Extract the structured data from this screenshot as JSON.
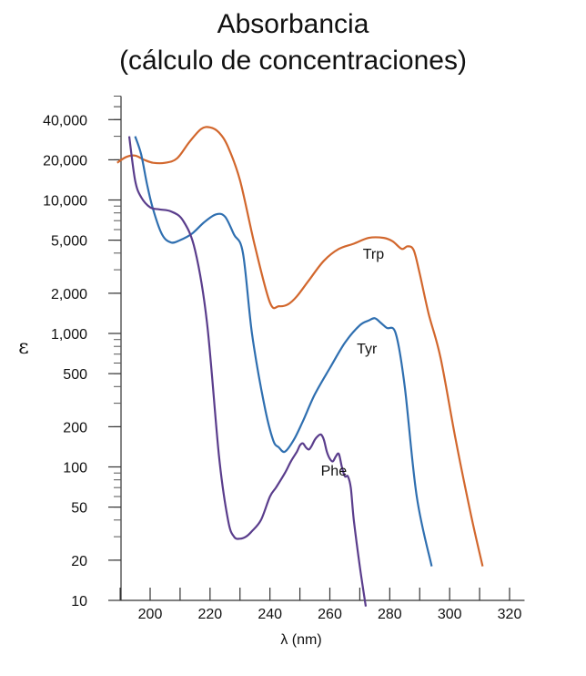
{
  "chart_data": {
    "type": "line",
    "title": "Absorbancia",
    "subtitle": "(cálculo de concentraciones)",
    "xlabel": "λ (nm)",
    "ylabel": "ε",
    "xlim": [
      185,
      325
    ],
    "ylim": [
      10,
      60000
    ],
    "yscale": "log",
    "grid": false,
    "x_ticks": [
      200,
      220,
      240,
      260,
      280,
      300,
      320
    ],
    "y_ticks": [
      {
        "value": 10,
        "label": "10"
      },
      {
        "value": 20,
        "label": "20"
      },
      {
        "value": 50,
        "label": "50"
      },
      {
        "value": 100,
        "label": "100"
      },
      {
        "value": 200,
        "label": "200"
      },
      {
        "value": 500,
        "label": "500"
      },
      {
        "value": 1000,
        "label": "1,000"
      },
      {
        "value": 2000,
        "label": "2,000"
      },
      {
        "value": 5000,
        "label": "5,000"
      },
      {
        "value": 10000,
        "label": "10,000"
      },
      {
        "value": 20000,
        "label": "20,000"
      },
      {
        "value": 40000,
        "label": "40,000"
      }
    ],
    "series": [
      {
        "name": "Trp",
        "color": "#d2672d",
        "x": [
          189,
          192,
          195,
          198,
          201,
          205,
          209,
          213,
          217,
          220,
          223,
          226,
          230,
          235,
          240,
          243,
          246,
          249,
          253,
          258,
          263,
          268,
          273,
          278,
          281,
          284,
          286,
          288,
          290,
          293,
          297,
          302,
          307,
          311
        ],
        "y": [
          19000,
          21000,
          21500,
          20000,
          19000,
          19000,
          20500,
          27000,
          34000,
          35000,
          32000,
          25000,
          14000,
          4500,
          1700,
          1600,
          1650,
          1900,
          2500,
          3500,
          4300,
          4700,
          5200,
          5200,
          4900,
          4300,
          4500,
          4200,
          2800,
          1400,
          650,
          160,
          45,
          18
        ]
      },
      {
        "name": "Tyr",
        "color": "#2f6fb0",
        "x": [
          195,
          197,
          199,
          201,
          204,
          207,
          210,
          214,
          218,
          222,
          225,
          228,
          231,
          234,
          238,
          241,
          243,
          245,
          248,
          251,
          255,
          260,
          265,
          270,
          273,
          275,
          277,
          279,
          282,
          285,
          289,
          294
        ],
        "y": [
          30000,
          22000,
          13000,
          8500,
          5500,
          4800,
          5000,
          5600,
          6800,
          7800,
          7500,
          5500,
          4000,
          1000,
          300,
          160,
          140,
          130,
          160,
          220,
          350,
          550,
          850,
          1150,
          1250,
          1300,
          1200,
          1100,
          1000,
          400,
          60,
          18
        ]
      },
      {
        "name": "Phe",
        "color": "#5a3d8c",
        "x": [
          193,
          195,
          197,
          200,
          203,
          207,
          211,
          215,
          219,
          223,
          226,
          228,
          230,
          232,
          234,
          237,
          240,
          242,
          245,
          247,
          249,
          250,
          251,
          252,
          253,
          254,
          255,
          256,
          257,
          258,
          259,
          260,
          261,
          262,
          263,
          264,
          265,
          266,
          267,
          268,
          270,
          272
        ],
        "y": [
          30000,
          14000,
          10500,
          8800,
          8500,
          8200,
          7000,
          4200,
          1200,
          120,
          40,
          30,
          29,
          30,
          33,
          40,
          60,
          70,
          90,
          110,
          130,
          145,
          150,
          140,
          135,
          145,
          160,
          170,
          175,
          160,
          130,
          115,
          110,
          120,
          125,
          100,
          85,
          85,
          70,
          40,
          18,
          9
        ]
      }
    ],
    "annotations": [
      {
        "text": "Trp",
        "x": 271,
        "y": 4000
      },
      {
        "text": "Tyr",
        "x": 269,
        "y": 780
      },
      {
        "text": "Phe",
        "x": 257,
        "y": 95
      }
    ]
  }
}
